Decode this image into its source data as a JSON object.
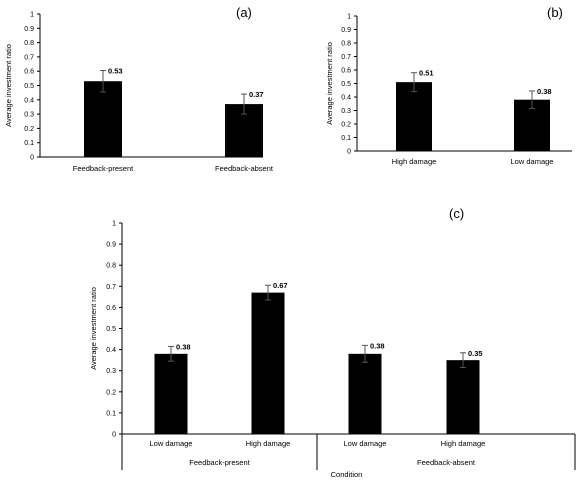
{
  "chart_data": [
    {
      "panel": "(a)",
      "type": "bar",
      "categories": [
        "Feedback-present",
        "Feedback-absent"
      ],
      "values": [
        0.53,
        0.37
      ],
      "errors": [
        0.075,
        0.07
      ],
      "data_labels": [
        "0.53",
        "0.37"
      ],
      "ylabel": "Average investment ratio",
      "xlabel": "",
      "ylim": [
        0,
        1
      ],
      "yticks": [
        "0",
        "0.1",
        "0.2",
        "0.3",
        "0.4",
        "0.5",
        "0.6",
        "0.7",
        "0.8",
        "0.9",
        "1"
      ],
      "grid": false,
      "bar_color": "#000000"
    },
    {
      "panel": "(b)",
      "type": "bar",
      "categories": [
        "High damage",
        "Low damage"
      ],
      "values": [
        0.51,
        0.38
      ],
      "errors": [
        0.07,
        0.065
      ],
      "data_labels": [
        "0.51",
        "0.38"
      ],
      "ylabel": "Average investment ratio",
      "xlabel": "",
      "ylim": [
        0,
        1
      ],
      "yticks": [
        "0",
        "0.1",
        "0.2",
        "0.3",
        "0.4",
        "0.5",
        "0.6",
        "0.7",
        "0.8",
        "0.9",
        "1"
      ],
      "grid": false,
      "bar_color": "#000000"
    },
    {
      "panel": "(c)",
      "type": "bar",
      "categories": [
        "Low damage",
        "High damage",
        "Low damage",
        "High damage"
      ],
      "groups": [
        "Feedback-present",
        "Feedback-absent"
      ],
      "values": [
        0.38,
        0.67,
        0.38,
        0.35
      ],
      "errors": [
        0.035,
        0.035,
        0.04,
        0.035
      ],
      "data_labels": [
        "0.38",
        "0.67",
        "0.38",
        "0.35"
      ],
      "ylabel": "Average investment ratio",
      "xlabel": "Condition",
      "ylim": [
        0,
        1
      ],
      "yticks": [
        "0",
        "0.1",
        "0.2",
        "0.3",
        "0.4",
        "0.5",
        "0.6",
        "0.7",
        "0.8",
        "0.9",
        "1"
      ],
      "grid": false,
      "bar_color": "#000000"
    }
  ]
}
